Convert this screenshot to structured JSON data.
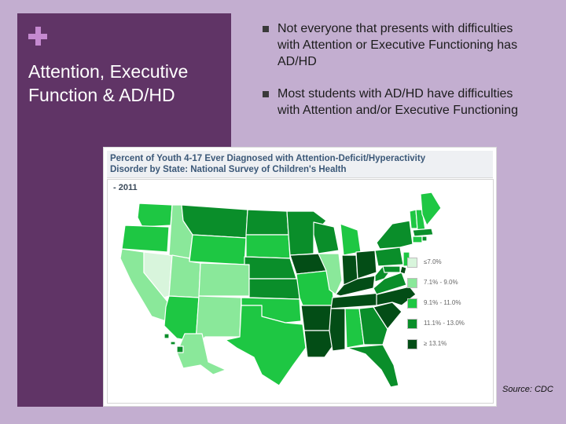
{
  "slide": {
    "title_line1": "Attention, Executive",
    "title_line2": "Function & AD/HD",
    "bullets": [
      "Not everyone that presents with difficulties with Attention or Executive Functioning has AD/HD",
      "Most students with AD/HD have difficulties with Attention and/or Executive Functioning"
    ],
    "source": "Source: CDC"
  },
  "map": {
    "title_line1": "Percent of Youth 4-17 Ever Diagnosed with Attention-Deficit/Hyperactivity",
    "title_line2": "Disorder by State: National Survey of Children's Health",
    "year": "- 2011",
    "legend": [
      {
        "label": "≤7.0%",
        "color": "#d8f5dc"
      },
      {
        "label": "7.1% - 9.0%",
        "color": "#8ae89a"
      },
      {
        "label": "9.1% - 11.0%",
        "color": "#1ec743"
      },
      {
        "label": "11.1% - 13.0%",
        "color": "#0a8e2a"
      },
      {
        "label": "≥ 13.1%",
        "color": "#034d16"
      }
    ]
  },
  "colors": {
    "left_panel": "#603466",
    "background": "#c3aed0",
    "accent_plus": "#c58ad0"
  }
}
